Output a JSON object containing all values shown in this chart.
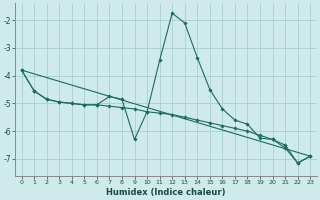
{
  "xlabel": "Humidex (Indice chaleur)",
  "background_color": "#ceeaea",
  "grid_color": "#aacfcf",
  "line_color": "#1a6b60",
  "xlim": [
    -0.5,
    23.5
  ],
  "ylim": [
    -7.6,
    -1.4
  ],
  "yticks": [
    -7,
    -6,
    -5,
    -4,
    -3,
    -2
  ],
  "xticks": [
    0,
    1,
    2,
    3,
    4,
    5,
    6,
    7,
    8,
    9,
    10,
    11,
    12,
    13,
    14,
    15,
    16,
    17,
    18,
    19,
    20,
    21,
    22,
    23
  ],
  "series_main": [
    [
      0,
      -3.8
    ],
    [
      1,
      -4.55
    ],
    [
      2,
      -4.85
    ],
    [
      3,
      -4.95
    ],
    [
      4,
      -5.0
    ],
    [
      5,
      -5.05
    ],
    [
      6,
      -5.05
    ],
    [
      7,
      -4.75
    ],
    [
      8,
      -4.85
    ],
    [
      9,
      -6.3
    ],
    [
      10,
      -5.3
    ],
    [
      11,
      -3.45
    ],
    [
      12,
      -1.75
    ],
    [
      13,
      -2.1
    ],
    [
      14,
      -3.35
    ],
    [
      15,
      -4.5
    ],
    [
      16,
      -5.2
    ],
    [
      17,
      -5.6
    ],
    [
      18,
      -5.75
    ],
    [
      19,
      -6.25
    ],
    [
      20,
      -6.3
    ],
    [
      21,
      -6.6
    ],
    [
      22,
      -7.15
    ],
    [
      23,
      -6.9
    ]
  ],
  "series_smooth": [
    [
      0,
      -3.8
    ],
    [
      1,
      -4.55
    ],
    [
      2,
      -4.85
    ],
    [
      3,
      -4.95
    ],
    [
      4,
      -5.0
    ],
    [
      5,
      -5.05
    ],
    [
      6,
      -5.05
    ],
    [
      7,
      -5.1
    ],
    [
      8,
      -5.15
    ],
    [
      9,
      -5.2
    ],
    [
      10,
      -5.3
    ],
    [
      11,
      -5.35
    ],
    [
      12,
      -5.4
    ],
    [
      13,
      -5.5
    ],
    [
      14,
      -5.6
    ],
    [
      15,
      -5.7
    ],
    [
      16,
      -5.8
    ],
    [
      17,
      -5.9
    ],
    [
      18,
      -6.0
    ],
    [
      19,
      -6.15
    ],
    [
      20,
      -6.3
    ],
    [
      21,
      -6.5
    ],
    [
      22,
      -7.15
    ],
    [
      23,
      -6.9
    ]
  ],
  "series_line": [
    [
      0,
      -3.8
    ],
    [
      23,
      -6.9
    ]
  ]
}
